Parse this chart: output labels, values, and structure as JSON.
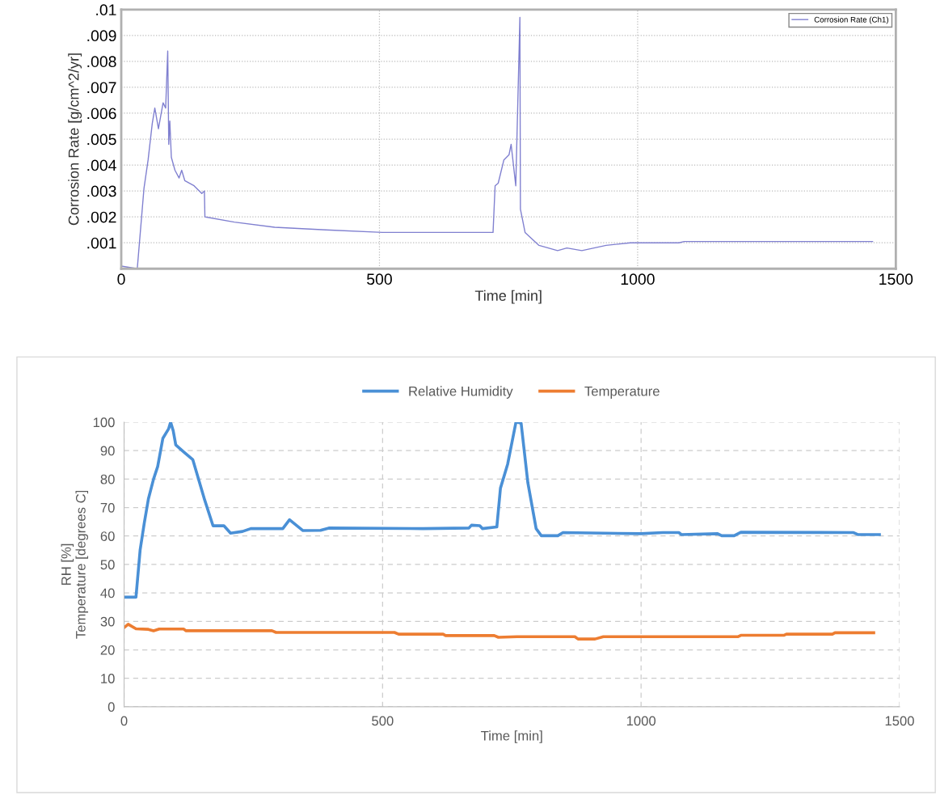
{
  "chart_data": [
    {
      "type": "line",
      "xlabel": "Time [min]",
      "ylabel": "Corrosion Rate [g/cm^2/yr]",
      "legend": "top right",
      "grid": true,
      "xlim": [
        0,
        1500
      ],
      "xticks": [
        0,
        500,
        1000,
        1500
      ],
      "ylim": [
        0,
        0.01
      ],
      "yticks": [
        {
          "value": 0.001,
          "label": ".001"
        },
        {
          "value": 0.002,
          "label": ".002"
        },
        {
          "value": 0.003,
          "label": ".003"
        },
        {
          "value": 0.004,
          "label": ".004"
        },
        {
          "value": 0.005,
          "label": ".005"
        },
        {
          "value": 0.006,
          "label": ".006"
        },
        {
          "value": 0.007,
          "label": ".007"
        },
        {
          "value": 0.008,
          "label": ".008"
        },
        {
          "value": 0.009,
          "label": ".009"
        },
        {
          "value": 0.01,
          "label": ".01"
        }
      ],
      "series": [
        {
          "name": "Corrosion Rate (Ch1)",
          "color": "#8080d0",
          "x": [
            0,
            31,
            44,
            52,
            60,
            65,
            72,
            81,
            86,
            90,
            92,
            94,
            97,
            104,
            112,
            117,
            123,
            141,
            156,
            161,
            162,
            219,
            297,
            396,
            506,
            720,
            724,
            730,
            741,
            751,
            755,
            764,
            772,
            773,
            776,
            782,
            809,
            845,
            863,
            892,
            939,
            986,
            1080,
            1090,
            1455
          ],
          "values": [
            0.0001,
            0,
            0.0031,
            0.0042,
            0.0056,
            0.0062,
            0.0054,
            0.0064,
            0.0062,
            0.0084,
            0.0048,
            0.0057,
            0.0043,
            0.0038,
            0.0035,
            0.0038,
            0.0034,
            0.0032,
            0.0029,
            0.003,
            0.002,
            0.0018,
            0.0016,
            0.0015,
            0.0014,
            0.0014,
            0.0032,
            0.0033,
            0.0042,
            0.0044,
            0.0048,
            0.0032,
            0.0097,
            0.0023,
            0.002,
            0.0014,
            0.0009,
            0.0007,
            0.0008,
            0.0007,
            0.0009,
            0.001,
            0.001,
            0.00105,
            0.00105
          ]
        }
      ]
    },
    {
      "type": "line",
      "xlabel": "Time [min]",
      "ylabel": "RH [%]\nTemperature [degrees C]",
      "legend": "top",
      "grid": true,
      "xlim": [
        0,
        1500
      ],
      "xticks": [
        0,
        500,
        1000,
        1500
      ],
      "ylim": [
        0,
        100
      ],
      "yticks": [
        0,
        10,
        20,
        30,
        40,
        50,
        60,
        70,
        80,
        90,
        100
      ],
      "series": [
        {
          "name": "Relative Humidity",
          "color": "#4a90d6",
          "x": [
            0,
            23,
            31,
            39,
            47,
            57,
            65,
            75,
            86,
            90,
            95,
            100,
            115,
            133,
            156,
            172,
            193,
            206,
            229,
            245,
            307,
            320,
            346,
            380,
            396,
            578,
            667,
            672,
            688,
            693,
            721,
            728,
            742,
            758,
            760,
            768,
            781,
            797,
            807,
            839,
            849,
            1000,
            1042,
            1073,
            1078,
            1148,
            1156,
            1180,
            1193,
            1411,
            1419,
            1461
          ],
          "values": [
            38.5,
            38.5,
            55,
            64.5,
            73,
            80,
            84.4,
            94.3,
            97.6,
            100,
            97,
            92,
            89.6,
            86.8,
            72.6,
            63.6,
            63.6,
            61,
            61.6,
            62.6,
            62.6,
            65.7,
            61.9,
            62,
            62.8,
            62.6,
            62.8,
            63.8,
            63.6,
            62.6,
            63.2,
            76.8,
            85.3,
            100,
            100,
            99.6,
            78.7,
            62.6,
            60.1,
            60.1,
            61.2,
            60.8,
            61.2,
            61.2,
            60.5,
            60.8,
            60.1,
            60.1,
            61.3,
            61.2,
            60.5,
            60.5
          ]
        },
        {
          "name": "Temperature",
          "color": "#ed7d31",
          "x": [
            0,
            8,
            23,
            47,
            57,
            68,
            115,
            120,
            286,
            294,
            523,
            531,
            617,
            622,
            716,
            724,
            760,
            872,
            878,
            911,
            927,
            1187,
            1193,
            1276,
            1281,
            1370,
            1375,
            1450
          ],
          "values": [
            27.8,
            29,
            27.4,
            27.2,
            26.7,
            27.3,
            27.3,
            26.7,
            26.7,
            26.1,
            26.1,
            25.5,
            25.5,
            25,
            25,
            24.4,
            24.6,
            24.6,
            23.8,
            23.8,
            24.6,
            24.6,
            25.1,
            25.1,
            25.5,
            25.5,
            26,
            26
          ]
        }
      ]
    }
  ]
}
